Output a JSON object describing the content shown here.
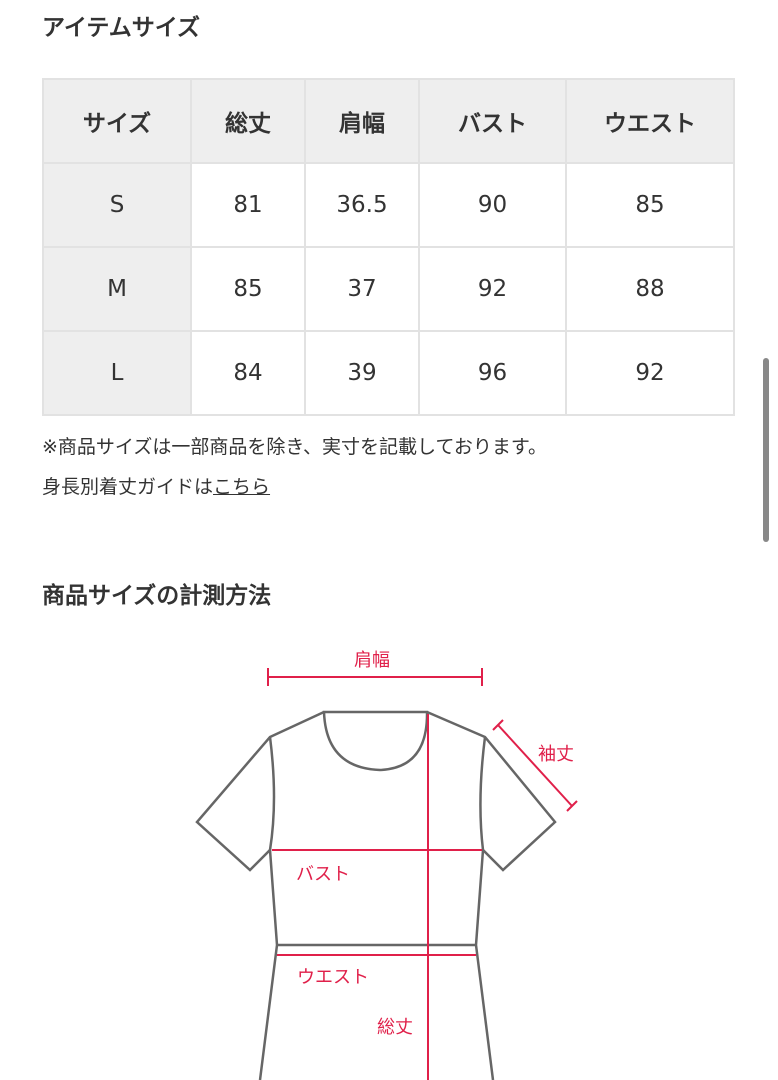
{
  "section_title": "アイテムサイズ",
  "table": {
    "headers": [
      "サイズ",
      "総丈",
      "肩幅",
      "バスト",
      "ウエスト"
    ],
    "rows": [
      [
        "S",
        "81",
        "36.5",
        "90",
        "85"
      ],
      [
        "M",
        "85",
        "37",
        "92",
        "88"
      ],
      [
        "L",
        "84",
        "39",
        "96",
        "92"
      ]
    ]
  },
  "note": "※商品サイズは一部商品を除き、実寸を記載しております。",
  "guide_text": "身長別着丈ガイドは",
  "guide_link": "こちら",
  "measure_title": "商品サイズの計測方法",
  "diagram": {
    "shoulder": "肩幅",
    "sleeve": "袖丈",
    "bust": "バスト",
    "waist": "ウエスト",
    "length": "総丈",
    "accent_color": "#e0204a"
  }
}
